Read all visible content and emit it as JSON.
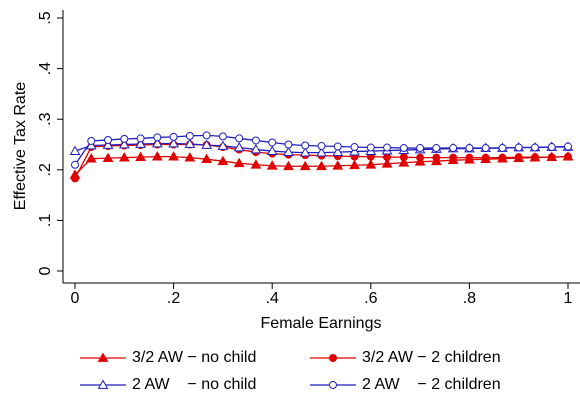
{
  "chart_data": {
    "type": "line",
    "xlabel": "Female Earnings",
    "ylabel": "Effective Tax Rate",
    "x": [
      0,
      0.033,
      0.067,
      0.1,
      0.133,
      0.167,
      0.2,
      0.233,
      0.267,
      0.3,
      0.333,
      0.367,
      0.4,
      0.433,
      0.467,
      0.5,
      0.533,
      0.567,
      0.6,
      0.633,
      0.667,
      0.7,
      0.733,
      0.767,
      0.8,
      0.833,
      0.867,
      0.9,
      0.933,
      0.967,
      1
    ],
    "series": [
      {
        "name": "3/2 AW − no child",
        "color": "#e00000",
        "marker": "triangle",
        "filled": true,
        "values": [
          0.19,
          0.222,
          0.223,
          0.224,
          0.225,
          0.226,
          0.226,
          0.224,
          0.221,
          0.217,
          0.213,
          0.21,
          0.208,
          0.207,
          0.207,
          0.207,
          0.208,
          0.209,
          0.21,
          0.212,
          0.214,
          0.216,
          0.217,
          0.219,
          0.22,
          0.221,
          0.222,
          0.223,
          0.224,
          0.225,
          0.226
        ]
      },
      {
        "name": "3/2 AW − 2 children",
        "color": "#e00000",
        "marker": "circle",
        "filled": true,
        "values": [
          0.183,
          0.245,
          0.247,
          0.248,
          0.249,
          0.25,
          0.25,
          0.25,
          0.249,
          0.245,
          0.24,
          0.235,
          0.232,
          0.23,
          0.229,
          0.228,
          0.227,
          0.226,
          0.226,
          0.225,
          0.225,
          0.224,
          0.224,
          0.224,
          0.224,
          0.224,
          0.224,
          0.225,
          0.225,
          0.225,
          0.226
        ]
      },
      {
        "name": "2 AW    − no child",
        "color": "#1f1fbf",
        "marker": "triangle",
        "filled": false,
        "values": [
          0.237,
          0.248,
          0.249,
          0.25,
          0.251,
          0.252,
          0.252,
          0.251,
          0.249,
          0.247,
          0.244,
          0.24,
          0.237,
          0.235,
          0.234,
          0.234,
          0.235,
          0.236,
          0.237,
          0.238,
          0.239,
          0.24,
          0.241,
          0.242,
          0.242,
          0.243,
          0.243,
          0.244,
          0.244,
          0.245,
          0.245
        ]
      },
      {
        "name": "2 AW    − 2 children",
        "color": "#1f1fbf",
        "marker": "circle",
        "filled": false,
        "values": [
          0.21,
          0.257,
          0.259,
          0.261,
          0.262,
          0.264,
          0.265,
          0.267,
          0.268,
          0.266,
          0.262,
          0.258,
          0.254,
          0.25,
          0.248,
          0.247,
          0.246,
          0.245,
          0.244,
          0.244,
          0.243,
          0.243,
          0.243,
          0.243,
          0.243,
          0.243,
          0.243,
          0.244,
          0.244,
          0.245,
          0.246
        ]
      }
    ],
    "xlim": [
      0,
      1
    ],
    "ylim": [
      0,
      0.5
    ],
    "xticks": [
      0,
      {
        "value": 0.2,
        "label": ".2"
      },
      {
        "value": 0.4,
        "label": ".4"
      },
      {
        "value": 0.6,
        "label": ".6"
      },
      {
        "value": 0.8,
        "label": ".8"
      },
      1
    ],
    "yticks": [
      0,
      {
        "value": 0.1,
        "label": ".1"
      },
      {
        "value": 0.2,
        "label": ".2"
      },
      {
        "value": 0.3,
        "label": ".3"
      },
      {
        "value": 0.4,
        "label": ".4"
      },
      {
        "value": 0.5,
        "label": ".5"
      }
    ],
    "grid": false,
    "legend": "bottom"
  }
}
